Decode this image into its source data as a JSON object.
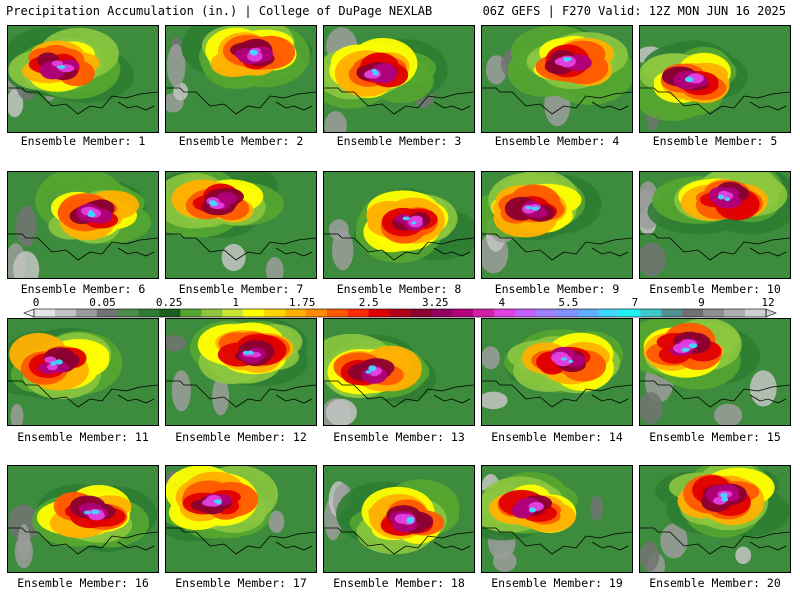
{
  "header": {
    "left": "Precipitation Accumulation (in.) | College of DuPage NEXLAB",
    "right": "06Z GEFS | F270 Valid: 12Z MON JUN 16 2025"
  },
  "members": [
    {
      "label": "Ensemble Member: 1"
    },
    {
      "label": "Ensemble Member: 2"
    },
    {
      "label": "Ensemble Member: 3"
    },
    {
      "label": "Ensemble Member: 4"
    },
    {
      "label": "Ensemble Member: 5"
    },
    {
      "label": "Ensemble Member: 6"
    },
    {
      "label": "Ensemble Member: 7"
    },
    {
      "label": "Ensemble Member: 8"
    },
    {
      "label": "Ensemble Member: 9"
    },
    {
      "label": "Ensemble Member: 10"
    },
    {
      "label": "Ensemble Member: 11"
    },
    {
      "label": "Ensemble Member: 12"
    },
    {
      "label": "Ensemble Member: 13"
    },
    {
      "label": "Ensemble Member: 14"
    },
    {
      "label": "Ensemble Member: 15"
    },
    {
      "label": "Ensemble Member: 16"
    },
    {
      "label": "Ensemble Member: 17"
    },
    {
      "label": "Ensemble Member: 18"
    },
    {
      "label": "Ensemble Member: 19"
    },
    {
      "label": "Ensemble Member: 20"
    }
  ],
  "colorbar": {
    "tick_labels": [
      "0",
      "0.05",
      "0.25",
      "1",
      "1.75",
      "2.5",
      "3.25",
      "4",
      "5.5",
      "7",
      "9",
      "12"
    ],
    "colors": [
      "#e6e6e6",
      "#c4c4c4",
      "#9c9c9c",
      "#737373",
      "#4b8c4b",
      "#2e7d32",
      "#1b5e20",
      "#55a630",
      "#8cc63f",
      "#c8e632",
      "#ffff00",
      "#ffd700",
      "#ffb000",
      "#ff8c00",
      "#ff5a00",
      "#ff2a00",
      "#e00000",
      "#b00018",
      "#8b0030",
      "#900060",
      "#b0007a",
      "#d020a8",
      "#e040e0",
      "#c060ff",
      "#a080ff",
      "#8090ff",
      "#60b0ff",
      "#40d8ff",
      "#20f0f0",
      "#40c8c8",
      "#509090",
      "#707070",
      "#909090",
      "#b0b0b0",
      "#cfcfcf"
    ]
  }
}
